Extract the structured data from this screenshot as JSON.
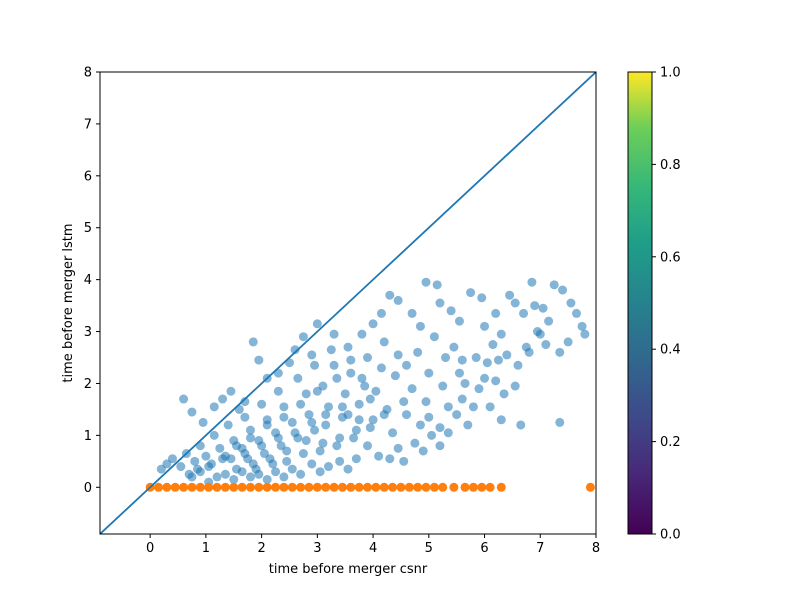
{
  "chart_data": {
    "type": "scatter",
    "xlabel": "time before merger csnr",
    "ylabel": "time before merger lstm",
    "xlim": [
      -0.9,
      8
    ],
    "ylim": [
      -0.9,
      8
    ],
    "xticks": [
      "0",
      "1",
      "2",
      "3",
      "4",
      "5",
      "6",
      "7",
      "8"
    ],
    "yticks": [
      "0",
      "1",
      "2",
      "3",
      "4",
      "5",
      "6",
      "7",
      "8"
    ],
    "grid": false,
    "colors": {
      "lstm_points": "#1f77b4",
      "baseline_points": "#ff7f0e",
      "reference_line": "#1f77b4"
    },
    "reference_line": {
      "from": [
        -0.9,
        -0.9
      ],
      "to": [
        8,
        8
      ]
    },
    "series": [
      {
        "points": [
          [
            0.6,
            1.7
          ],
          [
            0.75,
            1.45
          ],
          [
            0.95,
            1.25
          ],
          [
            1.15,
            1.55
          ],
          [
            1.3,
            1.7
          ],
          [
            1.45,
            1.85
          ],
          [
            1.6,
            1.5
          ],
          [
            1.7,
            1.65
          ],
          [
            1.85,
            2.8
          ],
          [
            1.95,
            2.45
          ],
          [
            2.1,
            2.1
          ],
          [
            2.3,
            2.2
          ],
          [
            2.5,
            2.4
          ],
          [
            2.6,
            2.65
          ],
          [
            2.75,
            2.9
          ],
          [
            2.9,
            2.55
          ],
          [
            3.0,
            3.15
          ],
          [
            3.3,
            2.95
          ],
          [
            3.55,
            2.7
          ],
          [
            3.8,
            2.95
          ],
          [
            4.0,
            3.15
          ],
          [
            4.15,
            3.35
          ],
          [
            4.3,
            3.7
          ],
          [
            4.45,
            3.6
          ],
          [
            4.7,
            3.35
          ],
          [
            4.85,
            3.1
          ],
          [
            4.95,
            3.95
          ],
          [
            5.15,
            3.9
          ],
          [
            5.2,
            3.55
          ],
          [
            5.4,
            3.4
          ],
          [
            5.55,
            3.2
          ],
          [
            5.75,
            3.75
          ],
          [
            5.95,
            3.65
          ],
          [
            6.0,
            3.1
          ],
          [
            6.2,
            3.35
          ],
          [
            6.3,
            2.95
          ],
          [
            6.45,
            3.7
          ],
          [
            6.55,
            3.55
          ],
          [
            6.7,
            3.35
          ],
          [
            6.85,
            3.95
          ],
          [
            6.9,
            3.5
          ],
          [
            7.05,
            3.45
          ],
          [
            7.15,
            3.2
          ],
          [
            7.25,
            3.9
          ],
          [
            7.4,
            3.8
          ],
          [
            7.55,
            3.55
          ],
          [
            7.65,
            3.35
          ],
          [
            7.75,
            3.1
          ],
          [
            7.8,
            2.95
          ],
          [
            7.5,
            2.8
          ],
          [
            7.35,
            2.6
          ],
          [
            7.1,
            2.75
          ],
          [
            6.95,
            3.0
          ],
          [
            6.8,
            2.6
          ],
          [
            6.6,
            2.35
          ],
          [
            6.4,
            2.55
          ],
          [
            6.2,
            2.05
          ],
          [
            6.05,
            2.4
          ],
          [
            5.9,
            1.9
          ],
          [
            5.8,
            1.55
          ],
          [
            5.7,
            1.2
          ],
          [
            5.5,
            1.4
          ],
          [
            5.35,
            1.05
          ],
          [
            5.2,
            0.8
          ],
          [
            5.05,
            1.0
          ],
          [
            4.9,
            0.7
          ],
          [
            4.75,
            0.85
          ],
          [
            4.55,
            0.5
          ],
          [
            4.45,
            0.75
          ],
          [
            4.3,
            0.55
          ],
          [
            4.1,
            0.6
          ],
          [
            3.9,
            0.8
          ],
          [
            3.7,
            0.55
          ],
          [
            3.55,
            0.35
          ],
          [
            3.4,
            0.5
          ],
          [
            3.2,
            0.4
          ],
          [
            3.05,
            0.3
          ],
          [
            2.9,
            0.45
          ],
          [
            2.7,
            0.25
          ],
          [
            2.55,
            0.35
          ],
          [
            2.4,
            0.2
          ],
          [
            2.25,
            0.3
          ],
          [
            2.1,
            0.15
          ],
          [
            1.95,
            0.25
          ],
          [
            1.8,
            0.2
          ],
          [
            1.65,
            0.3
          ],
          [
            1.5,
            0.15
          ],
          [
            1.35,
            0.25
          ],
          [
            1.2,
            0.2
          ],
          [
            1.05,
            0.1
          ],
          [
            0.9,
            0.3
          ],
          [
            0.75,
            0.2
          ],
          [
            0.55,
            0.4
          ],
          [
            0.4,
            0.55
          ],
          [
            0.3,
            0.45
          ],
          [
            0.2,
            0.35
          ],
          [
            7.35,
            1.25
          ],
          [
            6.65,
            1.2
          ],
          [
            6.3,
            1.3
          ],
          [
            6.1,
            1.55
          ],
          [
            6.35,
            1.8
          ],
          [
            6.55,
            1.95
          ],
          [
            5.6,
            1.7
          ],
          [
            5.3,
            2.5
          ],
          [
            5.0,
            2.2
          ],
          [
            4.6,
            2.35
          ],
          [
            4.2,
            2.8
          ],
          [
            3.9,
            2.5
          ],
          [
            3.6,
            2.2
          ],
          [
            3.3,
            2.35
          ],
          [
            3.1,
            1.95
          ],
          [
            2.8,
            1.8
          ],
          [
            2.4,
            1.55
          ],
          [
            2.1,
            1.3
          ],
          [
            1.8,
            1.1
          ],
          [
            1.5,
            0.9
          ],
          [
            1.25,
            0.75
          ],
          [
            1.0,
            0.6
          ],
          [
            0.8,
            0.5
          ],
          [
            4.8,
            2.6
          ],
          [
            5.1,
            2.9
          ],
          [
            5.45,
            2.7
          ],
          [
            5.85,
            2.5
          ],
          [
            6.15,
            2.75
          ],
          [
            4.4,
            2.15
          ],
          [
            4.05,
            1.85
          ],
          [
            3.75,
            1.6
          ],
          [
            3.45,
            1.35
          ],
          [
            2.95,
            1.1
          ],
          [
            2.65,
            0.95
          ],
          [
            2.35,
            0.8
          ],
          [
            2.05,
            0.65
          ],
          [
            1.75,
            0.55
          ],
          [
            4.6,
            1.4
          ],
          [
            4.95,
            1.65
          ],
          [
            5.25,
            1.95
          ],
          [
            5.55,
            2.2
          ],
          [
            3.95,
            1.15
          ],
          [
            3.65,
            0.95
          ],
          [
            3.35,
            0.8
          ],
          [
            3.05,
            0.7
          ],
          [
            4.25,
            1.5
          ],
          [
            3.85,
            1.95
          ],
          [
            3.5,
            1.8
          ],
          [
            3.2,
            1.55
          ],
          [
            2.85,
            1.4
          ],
          [
            2.55,
            1.25
          ],
          [
            2.25,
            1.05
          ],
          [
            1.95,
            0.9
          ],
          [
            1.65,
            0.75
          ],
          [
            1.35,
            0.6
          ],
          [
            1.1,
            0.45
          ],
          [
            4.7,
            1.9
          ],
          [
            5.0,
            1.35
          ],
          [
            5.35,
            1.55
          ],
          [
            5.65,
            2.0
          ],
          [
            6.0,
            2.1
          ],
          [
            3.25,
            2.65
          ],
          [
            2.95,
            2.35
          ],
          [
            2.65,
            2.1
          ],
          [
            2.3,
            1.85
          ],
          [
            2.0,
            1.6
          ],
          [
            1.7,
            1.35
          ],
          [
            1.4,
            1.2
          ],
          [
            1.15,
            1.0
          ],
          [
            0.9,
            0.8
          ],
          [
            0.65,
            0.65
          ],
          [
            4.45,
            2.55
          ],
          [
            4.15,
            2.3
          ],
          [
            3.8,
            2.1
          ],
          [
            3.55,
            1.4
          ],
          [
            3.15,
            1.2
          ],
          [
            2.8,
            0.9
          ],
          [
            2.45,
            0.7
          ],
          [
            2.15,
            0.55
          ],
          [
            1.85,
            0.45
          ],
          [
            1.55,
            0.35
          ],
          [
            4.85,
            1.2
          ],
          [
            5.2,
            1.15
          ],
          [
            5.6,
            2.45
          ],
          [
            6.25,
            2.45
          ],
          [
            6.75,
            2.7
          ],
          [
            7.0,
            2.95
          ],
          [
            4.35,
            1.05
          ],
          [
            4.0,
            1.3
          ],
          [
            3.7,
            1.1
          ],
          [
            3.4,
            0.95
          ],
          [
            3.1,
            0.85
          ],
          [
            2.75,
            0.65
          ],
          [
            2.45,
            0.5
          ],
          [
            2.2,
            0.45
          ],
          [
            1.9,
            0.35
          ],
          [
            3.6,
            2.45
          ],
          [
            3.35,
            2.1
          ],
          [
            3.0,
            1.85
          ],
          [
            2.7,
            1.6
          ],
          [
            2.4,
            1.35
          ],
          [
            2.1,
            1.2
          ],
          [
            1.8,
            0.95
          ],
          [
            1.55,
            0.8
          ],
          [
            1.3,
            0.55
          ],
          [
            1.05,
            0.4
          ],
          [
            0.85,
            0.35
          ],
          [
            0.7,
            0.25
          ],
          [
            4.55,
            1.65
          ],
          [
            4.2,
            1.4
          ],
          [
            3.95,
            1.7
          ],
          [
            3.75,
            1.3
          ],
          [
            3.45,
            1.55
          ],
          [
            3.15,
            1.4
          ],
          [
            2.9,
            1.25
          ],
          [
            2.6,
            1.05
          ],
          [
            2.3,
            0.95
          ],
          [
            2.0,
            0.8
          ],
          [
            1.7,
            0.65
          ],
          [
            1.45,
            0.55
          ]
        ]
      },
      {
        "points": [
          [
            0.0,
            0.0
          ],
          [
            0.15,
            0.0
          ],
          [
            0.3,
            0.0
          ],
          [
            0.45,
            0.0
          ],
          [
            0.6,
            0.0
          ],
          [
            0.75,
            0.0
          ],
          [
            0.9,
            0.0
          ],
          [
            1.05,
            0.0
          ],
          [
            1.2,
            0.0
          ],
          [
            1.35,
            0.0
          ],
          [
            1.5,
            0.0
          ],
          [
            1.65,
            0.0
          ],
          [
            1.8,
            0.0
          ],
          [
            1.95,
            0.0
          ],
          [
            2.1,
            0.0
          ],
          [
            2.25,
            0.0
          ],
          [
            2.4,
            0.0
          ],
          [
            2.55,
            0.0
          ],
          [
            2.7,
            0.0
          ],
          [
            2.85,
            0.0
          ],
          [
            3.0,
            0.0
          ],
          [
            3.15,
            0.0
          ],
          [
            3.3,
            0.0
          ],
          [
            3.45,
            0.0
          ],
          [
            3.6,
            0.0
          ],
          [
            3.75,
            0.0
          ],
          [
            3.9,
            0.0
          ],
          [
            4.05,
            0.0
          ],
          [
            4.2,
            0.0
          ],
          [
            4.35,
            0.0
          ],
          [
            4.5,
            0.0
          ],
          [
            4.65,
            0.0
          ],
          [
            4.8,
            0.0
          ],
          [
            4.95,
            0.0
          ],
          [
            5.1,
            0.0
          ],
          [
            5.25,
            0.0
          ],
          [
            5.45,
            0.0
          ],
          [
            5.65,
            0.0
          ],
          [
            5.8,
            0.0
          ],
          [
            5.95,
            0.0
          ],
          [
            6.1,
            0.0
          ],
          [
            6.3,
            0.0
          ],
          [
            7.9,
            0.0
          ]
        ]
      }
    ],
    "colorbar": {
      "colormap": "viridis",
      "range": [
        0.0,
        1.0
      ],
      "tick_labels": [
        "0.0",
        "0.2",
        "0.4",
        "0.6",
        "0.8",
        "1.0"
      ],
      "tick_values": [
        0.0,
        0.2,
        0.4,
        0.6,
        0.8,
        1.0
      ]
    }
  }
}
